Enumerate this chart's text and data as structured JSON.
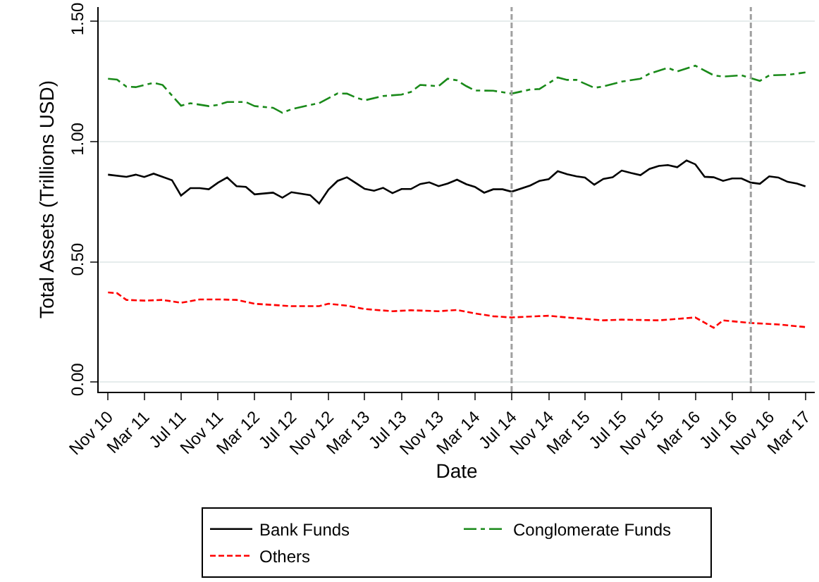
{
  "chart_data": {
    "type": "line",
    "xlabel": "Date",
    "ylabel": "Total Assets (Trillions USD)",
    "xlim": [
      "2010-10",
      "2017-04"
    ],
    "xticks": [
      {
        "value": "2010-11",
        "label": "Nov 10"
      },
      {
        "value": "2011-03",
        "label": "Mar 11"
      },
      {
        "value": "2011-07",
        "label": "Jul 11"
      },
      {
        "value": "2011-11",
        "label": "Nov 11"
      },
      {
        "value": "2012-03",
        "label": "Mar 12"
      },
      {
        "value": "2012-07",
        "label": "Jul 12"
      },
      {
        "value": "2012-11",
        "label": "Nov 12"
      },
      {
        "value": "2013-03",
        "label": "Mar 13"
      },
      {
        "value": "2013-07",
        "label": "Jul 13"
      },
      {
        "value": "2013-11",
        "label": "Nov 13"
      },
      {
        "value": "2014-03",
        "label": "Mar 14"
      },
      {
        "value": "2014-07",
        "label": "Jul 14"
      },
      {
        "value": "2014-11",
        "label": "Nov 14"
      },
      {
        "value": "2015-03",
        "label": "Mar 15"
      },
      {
        "value": "2015-07",
        "label": "Jul 15"
      },
      {
        "value": "2015-11",
        "label": "Nov 15"
      },
      {
        "value": "2016-03",
        "label": "Mar 16"
      },
      {
        "value": "2016-07",
        "label": "Jul 16"
      },
      {
        "value": "2016-11",
        "label": "Nov 16"
      },
      {
        "value": "2017-03",
        "label": "Mar 17"
      }
    ],
    "ylim": [
      -0.04,
      1.56
    ],
    "yticks": [
      {
        "value": 0,
        "label": "0.00"
      },
      {
        "value": 0.5,
        "label": "0.50"
      },
      {
        "value": 1,
        "label": "1.00"
      },
      {
        "value": 1.5,
        "label": "1.50"
      }
    ],
    "grid": "y",
    "legend": "bottom",
    "ref_lines": [
      {
        "axis": "x",
        "value": "2014-07",
        "label": null,
        "color": "#a0a0a0",
        "line_style": "dashed"
      },
      {
        "axis": "x",
        "value": "2016-09",
        "label": null,
        "color": "#a0a0a0",
        "line_style": "dashed"
      }
    ],
    "series": [
      {
        "name": "Bank Funds",
        "color": "#000000",
        "line_style": "solid",
        "x": [
          "2010-11",
          "2011-01",
          "2011-02",
          "2011-03",
          "2011-04",
          "2011-06",
          "2011-07",
          "2011-08",
          "2011-09",
          "2011-10",
          "2011-11",
          "2011-12",
          "2012-01",
          "2012-02",
          "2012-03",
          "2012-05",
          "2012-06",
          "2012-07",
          "2012-09",
          "2012-10",
          "2012-11",
          "2012-12",
          "2013-01",
          "2013-03",
          "2013-04",
          "2013-05",
          "2013-06",
          "2013-07",
          "2013-08",
          "2013-09",
          "2013-10",
          "2013-11",
          "2013-12",
          "2014-01",
          "2014-02",
          "2014-03",
          "2014-04",
          "2014-05",
          "2014-06",
          "2014-07",
          "2014-09",
          "2014-10",
          "2014-11",
          "2014-12",
          "2015-01",
          "2015-02",
          "2015-03",
          "2015-04",
          "2015-05",
          "2015-06",
          "2015-07",
          "2015-08",
          "2015-09",
          "2015-10",
          "2015-11",
          "2015-12",
          "2016-01",
          "2016-02",
          "2016-03",
          "2016-04",
          "2016-05",
          "2016-06",
          "2016-07",
          "2016-08",
          "2016-09",
          "2016-10",
          "2016-11",
          "2016-12",
          "2017-01",
          "2017-02",
          "2017-03"
        ],
        "values": [
          0.863,
          0.854,
          0.863,
          0.853,
          0.867,
          0.84,
          0.776,
          0.807,
          0.807,
          0.802,
          0.83,
          0.851,
          0.815,
          0.812,
          0.781,
          0.788,
          0.767,
          0.79,
          0.778,
          0.743,
          0.801,
          0.837,
          0.852,
          0.804,
          0.796,
          0.808,
          0.786,
          0.803,
          0.803,
          0.824,
          0.831,
          0.815,
          0.826,
          0.842,
          0.823,
          0.812,
          0.788,
          0.802,
          0.802,
          0.792,
          0.818,
          0.837,
          0.844,
          0.877,
          0.865,
          0.856,
          0.851,
          0.821,
          0.845,
          0.852,
          0.88,
          0.87,
          0.861,
          0.887,
          0.899,
          0.903,
          0.894,
          0.922,
          0.906,
          0.854,
          0.852,
          0.837,
          0.847,
          0.847,
          0.83,
          0.825,
          0.856,
          0.851,
          0.833,
          0.826,
          0.814
        ]
      },
      {
        "name": "Conglomerate Funds",
        "color": "#1a8a1a",
        "line_style": "dashdot",
        "x": [
          "2010-11",
          "2010-12",
          "2011-01",
          "2011-02",
          "2011-04",
          "2011-05",
          "2011-07",
          "2011-08",
          "2011-10",
          "2011-11",
          "2011-12",
          "2012-02",
          "2012-03",
          "2012-05",
          "2012-06",
          "2012-07",
          "2012-09",
          "2012-10",
          "2012-12",
          "2013-01",
          "2013-02",
          "2013-03",
          "2013-05",
          "2013-07",
          "2013-08",
          "2013-09",
          "2013-11",
          "2013-12",
          "2014-01",
          "2014-02",
          "2014-03",
          "2014-05",
          "2014-07",
          "2014-09",
          "2014-10",
          "2014-12",
          "2015-01",
          "2015-02",
          "2015-04",
          "2015-05",
          "2015-07",
          "2015-09",
          "2015-10",
          "2015-12",
          "2016-01",
          "2016-03",
          "2016-05",
          "2016-06",
          "2016-08",
          "2016-10",
          "2016-11",
          "2017-01",
          "2017-03"
        ],
        "values": [
          1.262,
          1.258,
          1.229,
          1.227,
          1.245,
          1.236,
          1.15,
          1.16,
          1.148,
          1.153,
          1.165,
          1.165,
          1.148,
          1.141,
          1.12,
          1.135,
          1.153,
          1.16,
          1.201,
          1.2,
          1.183,
          1.172,
          1.19,
          1.196,
          1.207,
          1.236,
          1.231,
          1.262,
          1.255,
          1.231,
          1.213,
          1.212,
          1.2,
          1.217,
          1.219,
          1.267,
          1.257,
          1.257,
          1.224,
          1.23,
          1.25,
          1.262,
          1.283,
          1.307,
          1.292,
          1.316,
          1.276,
          1.271,
          1.276,
          1.253,
          1.276,
          1.278,
          1.288
        ]
      },
      {
        "name": "Others",
        "color": "#ff0000",
        "line_style": "dashed",
        "x": [
          "2010-11",
          "2010-12",
          "2011-01",
          "2011-03",
          "2011-05",
          "2011-07",
          "2011-09",
          "2011-11",
          "2012-01",
          "2012-03",
          "2012-05",
          "2012-07",
          "2012-10",
          "2012-11",
          "2013-01",
          "2013-03",
          "2013-06",
          "2013-08",
          "2013-11",
          "2014-01",
          "2014-03",
          "2014-05",
          "2014-07",
          "2014-09",
          "2014-11",
          "2015-01",
          "2015-05",
          "2015-07",
          "2015-11",
          "2016-03",
          "2016-05",
          "2016-06",
          "2016-09",
          "2016-12",
          "2017-03"
        ],
        "values": [
          0.373,
          0.37,
          0.342,
          0.339,
          0.342,
          0.33,
          0.344,
          0.344,
          0.342,
          0.326,
          0.321,
          0.316,
          0.316,
          0.326,
          0.318,
          0.304,
          0.295,
          0.299,
          0.295,
          0.3,
          0.286,
          0.274,
          0.269,
          0.273,
          0.276,
          0.269,
          0.257,
          0.26,
          0.257,
          0.269,
          0.226,
          0.257,
          0.246,
          0.24,
          0.229
        ]
      }
    ]
  }
}
